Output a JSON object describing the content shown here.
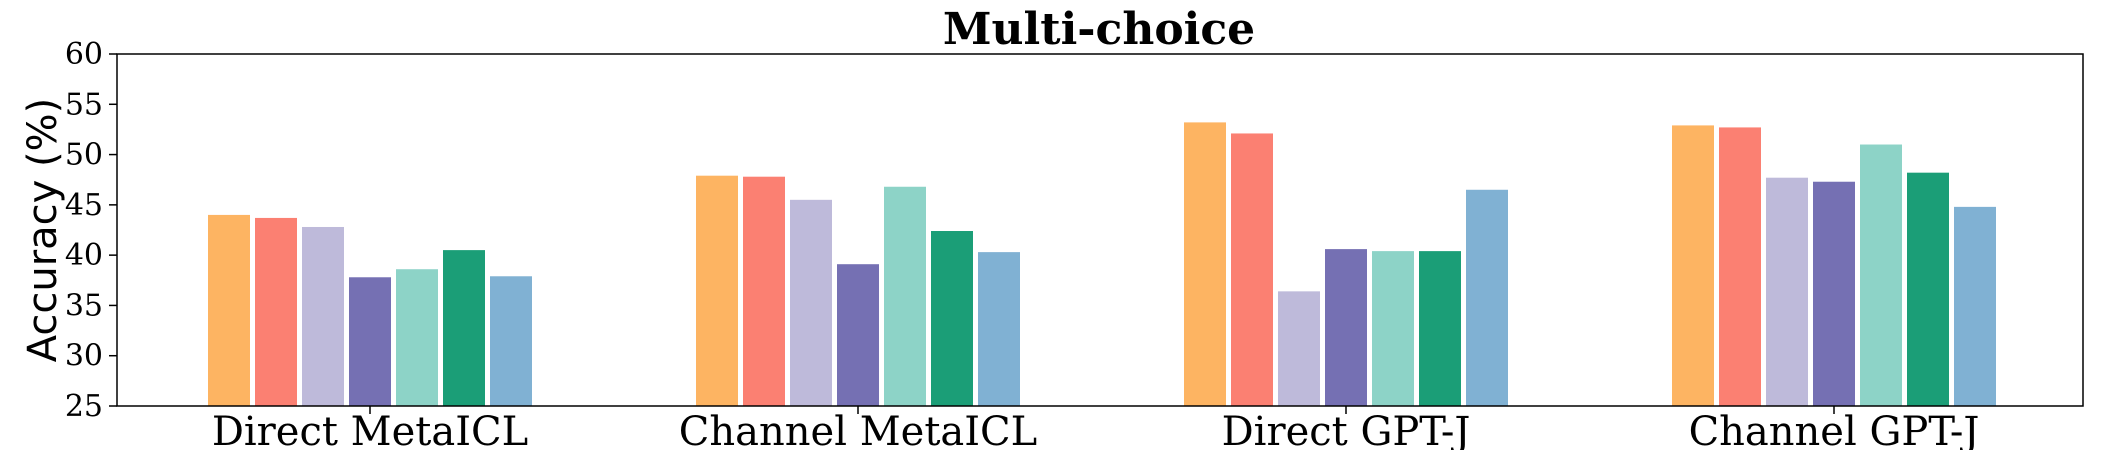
{
  "chart_data": {
    "type": "bar",
    "title": "Multi-choice",
    "xlabel": "",
    "ylabel": "Accuracy (%)",
    "ylim": [
      25,
      60
    ],
    "yticks": [
      25,
      30,
      35,
      40,
      45,
      50,
      55,
      60
    ],
    "grid": false,
    "categories": [
      "Direct MetaICL",
      "Channel MetaICL",
      "Direct GPT-J",
      "Channel GPT-J"
    ],
    "series": [
      {
        "color": "#fdb462",
        "values": [
          44.0,
          47.9,
          53.2,
          52.9
        ]
      },
      {
        "color": "#fb8072",
        "values": [
          43.7,
          47.8,
          52.1,
          52.7
        ]
      },
      {
        "color": "#bebada",
        "values": [
          42.8,
          45.5,
          36.4,
          47.7
        ]
      },
      {
        "color": "#7570b3",
        "values": [
          37.8,
          39.1,
          40.6,
          47.3
        ]
      },
      {
        "color": "#8dd3c7",
        "values": [
          38.6,
          46.8,
          40.4,
          51.0
        ]
      },
      {
        "color": "#1b9e77",
        "values": [
          40.5,
          42.4,
          40.4,
          48.2
        ]
      },
      {
        "color": "#80b1d3",
        "values": [
          37.9,
          40.3,
          46.5,
          44.8
        ]
      }
    ]
  }
}
